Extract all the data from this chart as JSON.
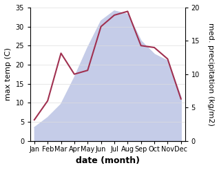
{
  "months": [
    "Jan",
    "Feb",
    "Mar",
    "Apr",
    "May",
    "Jun",
    "Jul",
    "Aug",
    "Sep",
    "Oct",
    "Nov",
    "Dec"
  ],
  "temp": [
    5.5,
    10.5,
    23.0,
    17.5,
    18.5,
    30.0,
    33.0,
    34.0,
    25.0,
    24.5,
    21.5,
    11.0
  ],
  "precip": [
    2.0,
    3.5,
    5.5,
    9.5,
    14.0,
    18.0,
    19.5,
    19.0,
    15.0,
    13.0,
    12.0,
    6.5
  ],
  "temp_color": "#a03050",
  "precip_fill_color": "#c5cce8",
  "left_ylim": [
    0,
    35
  ],
  "right_ylim": [
    0,
    20
  ],
  "left_yticks": [
    0,
    5,
    10,
    15,
    20,
    25,
    30,
    35
  ],
  "right_yticks": [
    0,
    5,
    10,
    15,
    20
  ],
  "xlabel": "date (month)",
  "ylabel_left": "max temp (C)",
  "ylabel_right": "med. precipitation (kg/m2)",
  "axis_label_fontsize": 8,
  "tick_fontsize": 7,
  "xlabel_fontsize": 9
}
